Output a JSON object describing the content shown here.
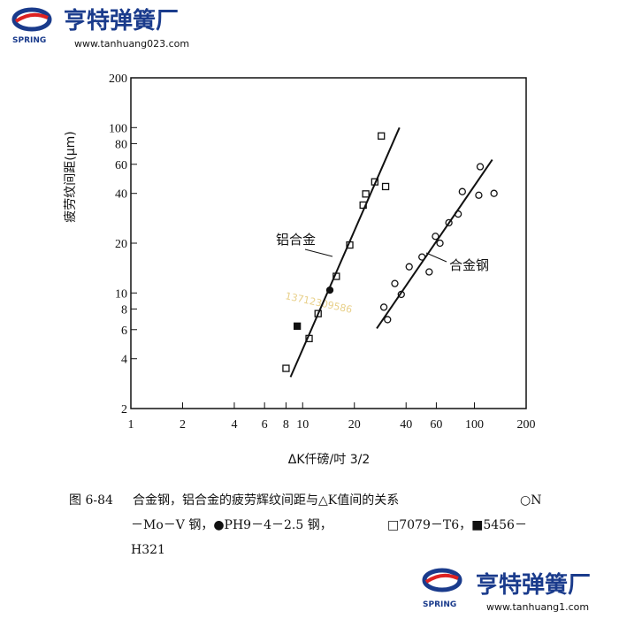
{
  "header": {
    "brand": "亨特弹簧厂",
    "logo_text": "SPRING",
    "url": "www.tanhuang023.com"
  },
  "footer": {
    "brand": "亨特弹簧厂",
    "logo_text": "SPRING",
    "url": "www.tanhuang1.com"
  },
  "watermark": "13712309586",
  "chart_data": {
    "type": "scatter",
    "ylabel": "疲劳纹间距(μm)",
    "xlabel": "ΔK仟磅/吋 3/2",
    "log_x": true,
    "log_y": true,
    "xlim": [
      1,
      200
    ],
    "ylim": [
      2,
      200
    ],
    "xticks": [
      1,
      2,
      4,
      6,
      8,
      10,
      20,
      40,
      60,
      100,
      200
    ],
    "yticks": [
      2,
      4,
      6,
      8,
      10,
      20,
      40,
      60,
      80,
      100,
      200
    ],
    "annotations": [
      "铝合金",
      "合金钢"
    ],
    "series": [
      {
        "marker": "open-square",
        "color": "#111",
        "x": [
          8.0,
          10.9,
          12.3,
          15.7,
          18.8,
          22.5,
          23.3,
          26.3,
          30.4,
          28.7
        ],
        "values": [
          3.5,
          5.3,
          7.5,
          12.6,
          19.5,
          34,
          39.7,
          47,
          44,
          89
        ]
      },
      {
        "marker": "filled-square",
        "color": "#111",
        "x": [
          9.3
        ],
        "values": [
          6.3
        ]
      },
      {
        "marker": "filled-circle",
        "color": "#111",
        "x": [
          14.4
        ],
        "values": [
          10.4
        ]
      },
      {
        "marker": "open-circle",
        "color": "#111",
        "x": [
          29.7,
          31.2,
          34.4,
          41.7,
          37.5,
          49.5,
          54.5,
          59.3,
          63,
          71,
          80.4,
          85,
          106,
          108,
          130
        ],
        "values": [
          8.2,
          6.9,
          11.4,
          14.4,
          9.8,
          16.5,
          13.4,
          22,
          20,
          26.6,
          30,
          41,
          39,
          58,
          40
        ]
      },
      {
        "marker": "line",
        "color": "#111",
        "x": [
          8.5,
          36.6
        ],
        "values": [
          3.1,
          100
        ]
      },
      {
        "marker": "line",
        "color": "#111",
        "x": [
          27,
          127
        ],
        "values": [
          6.1,
          64
        ]
      }
    ]
  },
  "caption": [
    "图 6-84",
    "合金钢，铝合金的疲劳辉纹间距与△K值间的关系",
    "○N",
    "－Mo－V 钢，●PH9－4－2.5 钢，",
    "□7079－T6，■5456－",
    "H321"
  ]
}
